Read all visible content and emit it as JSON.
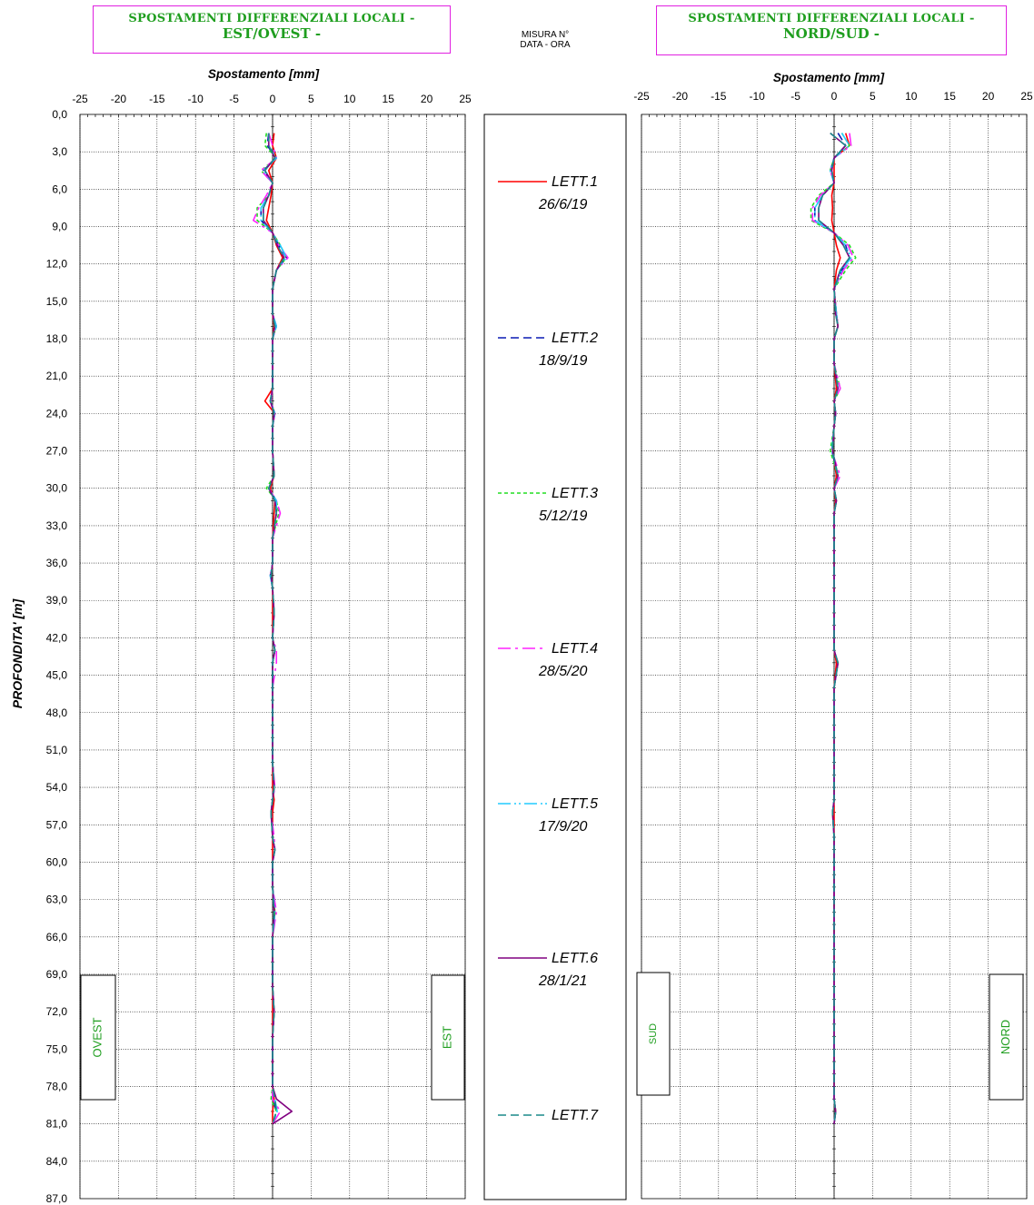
{
  "header": {
    "left_title_line1": "SPOSTAMENTI DIFFERENZIALI LOCALI -",
    "left_title_line2": "EST/OVEST -",
    "right_title_line1": "SPOSTAMENTI DIFFERENZIALI LOCALI -",
    "right_title_line2": "NORD/SUD -",
    "misura_line1": "MISURA N°",
    "misura_line2": "DATA - ORA"
  },
  "colors": {
    "title_text": "#1f9e1f",
    "title_border": "#e020e0",
    "grid": "#000000"
  },
  "chart_data": [
    {
      "type": "line",
      "xlabel": "Spostamento [mm]",
      "ylabel": "PROFONDITA' [m]",
      "xlim": [
        -25,
        25
      ],
      "ylim": [
        0,
        87
      ],
      "xticks": [
        "-25",
        "-20",
        "-15",
        "-10",
        "-5",
        "0",
        "5",
        "10",
        "15",
        "20",
        "25"
      ],
      "yticks": [
        "0,0",
        "3,0",
        "6,0",
        "9,0",
        "12,0",
        "15,0",
        "18,0",
        "21,0",
        "24,0",
        "27,0",
        "30,0",
        "33,0",
        "36,0",
        "39,0",
        "42,0",
        "45,0",
        "48,0",
        "51,0",
        "54,0",
        "57,0",
        "60,0",
        "63,0",
        "66,0",
        "69,0",
        "72,0",
        "75,0",
        "78,0",
        "81,0",
        "84,0",
        "87,0"
      ],
      "side_labels": {
        "left": "OVEST",
        "right": "EST"
      },
      "depth": [
        1.5,
        2.5,
        3.5,
        4.5,
        5.5,
        6.5,
        7.5,
        8.5,
        9.5,
        10.5,
        11.5,
        12.5,
        14,
        16,
        17,
        18,
        20,
        22,
        23,
        24,
        25,
        27,
        29,
        30,
        31,
        32,
        34,
        36,
        37,
        38,
        40,
        42,
        43,
        44,
        46,
        48,
        50,
        52,
        54,
        55,
        56,
        58,
        59,
        60,
        62,
        64,
        66,
        68,
        70,
        72,
        74,
        76,
        78,
        79,
        80,
        81
      ],
      "series": [
        {
          "name": "LETT.1 26/6/19",
          "color": "#ff0000",
          "dash": "",
          "values": [
            0.2,
            0,
            0.5,
            -0.5,
            0,
            -0.2,
            -0.5,
            -0.8,
            0,
            0.5,
            1.3,
            0.5,
            0,
            0,
            0.2,
            0,
            0,
            0,
            -1,
            0.3,
            0,
            0,
            0.2,
            -0.3,
            0.3,
            0.2,
            0,
            0,
            -0.2,
            0,
            0,
            0,
            0.3,
            0,
            0,
            0,
            0,
            0,
            0,
            0.2,
            0,
            0,
            0,
            0,
            0,
            0.3,
            0,
            0,
            0,
            0,
            0,
            0,
            0,
            0.2,
            0,
            0
          ]
        },
        {
          "name": "LETT.2 18/9/19",
          "color": "#0a1ab3",
          "dash": "9,5",
          "values": [
            -0.5,
            -0.7,
            0.5,
            -1.2,
            0,
            -0.5,
            -1.5,
            -1.5,
            0,
            0.8,
            1.8,
            0.5,
            0,
            0,
            0.5,
            0,
            0,
            0,
            -0.3,
            0.3,
            0,
            0,
            0.2,
            -0.5,
            0.5,
            0.5,
            0,
            0,
            -0.3,
            0,
            0.2,
            0,
            0.3,
            0,
            0,
            0,
            0,
            0,
            0.2,
            0,
            -0.2,
            0,
            0.3,
            0,
            0,
            0.3,
            0,
            0,
            0,
            0.2,
            0,
            0,
            0,
            0,
            0.5,
            0
          ]
        },
        {
          "name": "LETT.3 5/12/19",
          "color": "#22dd22",
          "dash": "4,3",
          "values": [
            -0.8,
            -1,
            0.5,
            -1.5,
            0,
            -0.5,
            -2,
            -2,
            0,
            1,
            1.8,
            0.5,
            0,
            0,
            0.5,
            0,
            0,
            0,
            -0.3,
            0.3,
            0,
            0,
            0.2,
            -0.8,
            0.5,
            0.8,
            0,
            0,
            -0.3,
            0,
            0.2,
            0,
            0.3,
            0,
            0,
            0,
            0,
            0,
            0.2,
            0,
            -0.2,
            0,
            0.3,
            0,
            0,
            0.3,
            0,
            0,
            0,
            0.2,
            0,
            0,
            0,
            -0.2,
            0.5,
            0
          ]
        },
        {
          "name": "LETT.4 28/5/20",
          "color": "#ff22ff",
          "dash": "14,5,3,5",
          "values": [
            -0.5,
            0,
            0.5,
            -1.5,
            0,
            -0.8,
            -1.8,
            -2.5,
            0,
            0.8,
            2,
            0.5,
            0,
            0,
            0.5,
            0,
            0,
            0,
            -0.2,
            0.3,
            0,
            0,
            0.2,
            -0.5,
            0.5,
            1,
            0,
            0,
            -0.3,
            0,
            0.2,
            0,
            0.5,
            0.5,
            0,
            0,
            0,
            0,
            0.3,
            0,
            -0.2,
            0.2,
            0.3,
            0,
            0,
            0.5,
            0,
            0,
            0,
            0.2,
            0,
            0,
            0,
            0,
            1,
            0
          ]
        },
        {
          "name": "LETT.5 17/9/20",
          "color": "#22ccff",
          "dash": "14,4,2,3,2,4",
          "values": [
            -0.5,
            -0.5,
            0.5,
            -1.2,
            0,
            -0.5,
            -1.5,
            -1.5,
            0,
            1,
            1.8,
            0.5,
            0,
            0,
            0.5,
            0,
            0,
            0,
            -0.3,
            0.3,
            0,
            0,
            0.2,
            -0.5,
            0.5,
            0.5,
            0,
            0,
            -0.3,
            0,
            0.2,
            0,
            0.3,
            0,
            0,
            0,
            0,
            0,
            0.2,
            0,
            -0.2,
            0,
            0.3,
            0,
            0,
            0.3,
            0,
            0,
            0,
            0.2,
            0,
            0,
            0,
            0.3,
            0.6,
            0
          ]
        },
        {
          "name": "LETT.6 28/1/21",
          "color": "#800080",
          "dash": "",
          "values": [
            -0.5,
            -0.5,
            0.3,
            -1,
            0,
            -0.5,
            -1.2,
            -1.2,
            0,
            0.6,
            1.5,
            0.5,
            0,
            0,
            0.3,
            0,
            0,
            0,
            -0.3,
            0.2,
            0,
            0,
            0.2,
            -0.5,
            0.3,
            0.5,
            0,
            0,
            -0.2,
            0,
            0.2,
            0,
            0.3,
            0,
            0,
            0,
            0,
            0,
            0.2,
            0,
            -0.2,
            0,
            0.3,
            0,
            0,
            0.2,
            0,
            0,
            0,
            0.2,
            0,
            0,
            0,
            0.5,
            2.5,
            0
          ]
        },
        {
          "name": "LETT.7",
          "color": "#1a8a8a",
          "dash": "9,5",
          "values": [
            -0.5,
            -0.5,
            0.3,
            -1,
            0,
            -0.5,
            -1.2,
            -1.2,
            0,
            0.6,
            1.5,
            0.5,
            0,
            0,
            0.3,
            0,
            0,
            0,
            -0.3,
            0.2,
            0,
            0,
            0.2,
            -0.5,
            0.3,
            0.5,
            0,
            0,
            -0.2,
            0,
            0.2,
            0,
            0.3,
            0,
            0,
            0,
            0,
            0,
            0.2,
            0,
            -0.2,
            0,
            0.3,
            0,
            0,
            0.2,
            0,
            0,
            0,
            0.2,
            0,
            0,
            0,
            0.3,
            0.5,
            0
          ]
        }
      ]
    },
    {
      "type": "line",
      "xlabel": "Spostamento [mm]",
      "ylabel": "",
      "xlim": [
        -25,
        25
      ],
      "ylim": [
        0,
        87
      ],
      "xticks": [
        "-25",
        "-20",
        "-15",
        "-10",
        "-5",
        "0",
        "5",
        "10",
        "15",
        "20",
        "25"
      ],
      "yticks": [],
      "side_labels": {
        "left": "SUD",
        "right": "NORD"
      },
      "depth": [
        1.5,
        2.5,
        3.5,
        4.5,
        5.5,
        6.5,
        7.5,
        8.5,
        9.5,
        10.5,
        11.5,
        12.5,
        14,
        16,
        17,
        18,
        20,
        22,
        23,
        24,
        25,
        27,
        29,
        30,
        31,
        32,
        34,
        36,
        37,
        38,
        40,
        42,
        43,
        44,
        46,
        48,
        50,
        52,
        54,
        55,
        56,
        58,
        59,
        60,
        62,
        64,
        66,
        68,
        70,
        72,
        74,
        76,
        78,
        79,
        80,
        81
      ],
      "series": [
        {
          "name": "LETT.1 26/6/19",
          "color": "#ff0000",
          "dash": "",
          "values": [
            1.5,
            2,
            0,
            0,
            0,
            -0.3,
            -0.2,
            -0.3,
            0,
            0.3,
            0.8,
            0.3,
            0,
            0.3,
            0.5,
            0,
            0,
            0.3,
            0,
            0.2,
            0,
            -0.2,
            0.3,
            0,
            0.2,
            0,
            0,
            0,
            0,
            0,
            0,
            0,
            0,
            0.3,
            0,
            0,
            0,
            0,
            0,
            0,
            0,
            0,
            0,
            0,
            0,
            0,
            0,
            0,
            0,
            0,
            0,
            0,
            0,
            0,
            0.2,
            0
          ]
        },
        {
          "name": "LETT.2 18/9/19",
          "color": "#0a1ab3",
          "dash": "9,5",
          "values": [
            0.5,
            1.5,
            0,
            -0.5,
            0,
            -1.5,
            -2.5,
            -2.5,
            0,
            1.5,
            2,
            1,
            0,
            0.3,
            0.5,
            0,
            0,
            0.5,
            0,
            0.2,
            0,
            -0.3,
            0.5,
            0,
            0.3,
            0,
            0,
            0,
            0,
            0,
            0,
            0,
            0,
            0.5,
            0,
            0,
            0,
            0,
            0,
            0,
            -0.2,
            0,
            0,
            0,
            0,
            0,
            0,
            0,
            0,
            0,
            0,
            0,
            0,
            0,
            0.2,
            0
          ]
        },
        {
          "name": "LETT.3 5/12/19",
          "color": "#22dd22",
          "dash": "4,3",
          "values": [
            1,
            2,
            0,
            -0.5,
            0,
            -2,
            -3,
            -3,
            0,
            2,
            2.8,
            1.5,
            0,
            0.3,
            0.5,
            0,
            0,
            0.8,
            0,
            0.2,
            0,
            -0.5,
            0.5,
            0,
            0.3,
            0,
            0,
            0,
            0,
            0,
            0,
            0,
            0,
            0.5,
            0,
            0,
            0,
            0,
            0,
            0,
            -0.2,
            0,
            0,
            0,
            0,
            0,
            0,
            0,
            0,
            0,
            0,
            0,
            0,
            0,
            0.2,
            0
          ]
        },
        {
          "name": "LETT.4 28/5/20",
          "color": "#ff22ff",
          "dash": "14,5,3,5",
          "values": [
            2,
            2.2,
            0,
            -0.5,
            0,
            -1.8,
            -2.8,
            -2.8,
            0,
            1.8,
            2.5,
            1.2,
            0,
            0.3,
            0.5,
            0,
            0,
            0.8,
            0,
            0.2,
            0,
            -0.3,
            0.8,
            0,
            0.3,
            0,
            0,
            0,
            0,
            0,
            0,
            0,
            0,
            0.5,
            0,
            0,
            0,
            0,
            0,
            0,
            -0.2,
            0,
            0,
            0,
            0,
            0,
            0,
            0,
            0,
            0,
            0,
            0,
            0,
            0,
            0.2,
            0
          ]
        },
        {
          "name": "LETT.5 17/9/20",
          "color": "#22ccff",
          "dash": "14,4,2,3,2,4",
          "values": [
            1,
            2,
            0,
            -0.5,
            0,
            -1.5,
            -2.5,
            -2.5,
            0,
            1.5,
            2.2,
            1,
            0,
            0.3,
            0.5,
            0,
            0,
            0.5,
            0,
            0.2,
            0,
            -0.3,
            0.5,
            0,
            0.3,
            0,
            0,
            0,
            0,
            0,
            0,
            0,
            0,
            0.5,
            0,
            0,
            0,
            0,
            0,
            0,
            -0.2,
            0,
            0,
            0,
            0,
            0,
            0,
            0,
            0,
            0,
            0,
            0,
            0,
            0,
            0.2,
            0
          ]
        },
        {
          "name": "LETT.6 28/1/21",
          "color": "#800080",
          "dash": "",
          "values": [
            -0.5,
            1.5,
            0,
            -0.3,
            0,
            -1.5,
            -2,
            -2,
            0,
            1.2,
            2,
            0.8,
            0,
            0.2,
            0.5,
            0,
            0,
            0.5,
            0,
            0.2,
            0,
            -0.2,
            0.5,
            0,
            0.3,
            0,
            0,
            0,
            0,
            0,
            0,
            0,
            0,
            0.5,
            0,
            0,
            0,
            0,
            0,
            0,
            -0.2,
            0,
            0,
            0,
            0,
            0,
            0,
            0,
            0,
            0,
            0,
            0,
            0,
            0,
            0.2,
            0
          ]
        },
        {
          "name": "LETT.7",
          "color": "#1a8a8a",
          "dash": "9,5",
          "values": [
            -0.5,
            1.5,
            0,
            -0.3,
            0,
            -1.5,
            -2,
            -2,
            0,
            1.2,
            2,
            0.8,
            0,
            0.2,
            0.5,
            0,
            0,
            0.5,
            0,
            0.2,
            0,
            -0.2,
            0.5,
            0,
            0.3,
            0,
            0,
            0,
            0,
            0,
            0,
            0,
            0,
            0.5,
            0,
            0,
            0,
            0,
            0,
            0,
            -0.2,
            0,
            0,
            0,
            0,
            0,
            0,
            0,
            0,
            0,
            0,
            0,
            0,
            0,
            0.2,
            0
          ]
        }
      ]
    }
  ],
  "legend": [
    {
      "label": "LETT.1",
      "date": "26/6/19"
    },
    {
      "label": "LETT.2",
      "date": "18/9/19"
    },
    {
      "label": "LETT.3",
      "date": "5/12/19"
    },
    {
      "label": "LETT.4",
      "date": "28/5/20"
    },
    {
      "label": "LETT.5",
      "date": "17/9/20"
    },
    {
      "label": "LETT.6",
      "date": "28/1/21"
    },
    {
      "label": "LETT.7",
      "date": ""
    }
  ]
}
